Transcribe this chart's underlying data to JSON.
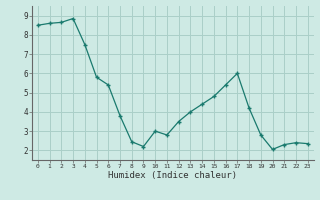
{
  "x": [
    0,
    1,
    2,
    3,
    4,
    5,
    6,
    7,
    8,
    9,
    10,
    11,
    12,
    13,
    14,
    15,
    16,
    17,
    18,
    19,
    20,
    21,
    22,
    23
  ],
  "y": [
    8.5,
    8.6,
    8.65,
    8.85,
    7.5,
    5.8,
    5.4,
    3.8,
    2.45,
    2.2,
    3.0,
    2.8,
    3.5,
    4.0,
    4.4,
    4.8,
    5.4,
    6.0,
    4.2,
    2.8,
    2.05,
    2.3,
    2.4,
    2.35
  ],
  "xlabel": "Humidex (Indice chaleur)",
  "ylim": [
    1.5,
    9.5
  ],
  "xlim": [
    -0.5,
    23.5
  ],
  "yticks": [
    2,
    3,
    4,
    5,
    6,
    7,
    8,
    9
  ],
  "xticks": [
    0,
    1,
    2,
    3,
    4,
    5,
    6,
    7,
    8,
    9,
    10,
    11,
    12,
    13,
    14,
    15,
    16,
    17,
    18,
    19,
    20,
    21,
    22,
    23
  ],
  "line_color": "#1a7a6e",
  "marker": "+",
  "bg_color": "#ceeae4",
  "grid_color": "#aacfc8",
  "axis_color": "#666666",
  "tick_label_color": "#333333"
}
